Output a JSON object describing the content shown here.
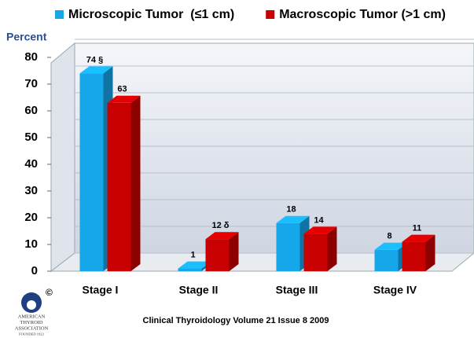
{
  "chart_data": {
    "type": "bar",
    "y_label": "Percent",
    "categories": [
      "Stage I",
      "Stage II",
      "Stage III",
      "Stage IV"
    ],
    "series": [
      {
        "name": "Microscopic Tumor  (≤1 cm)",
        "color": "#16a6ea",
        "values": [
          74,
          1,
          18,
          8
        ],
        "value_labels": [
          "74 §",
          "1",
          "18",
          "8"
        ]
      },
      {
        "name": "Macroscopic Tumor (>1 cm)",
        "color": "#c80000",
        "values": [
          63,
          12,
          14,
          11
        ],
        "value_labels": [
          "63",
          "12 δ",
          "14",
          "11"
        ]
      }
    ],
    "ylim": [
      0,
      80
    ],
    "yticks": [
      0,
      10,
      20,
      30,
      40,
      50,
      60,
      70,
      80
    ],
    "grid": true,
    "footer": "Clinical Thyroidology Volume 21 Issue 8 2009",
    "logo": {
      "mark": "©",
      "lines": [
        "AMERICAN",
        "THYROID",
        "ASSOCIATION",
        "FOUNDED 1923"
      ]
    }
  }
}
